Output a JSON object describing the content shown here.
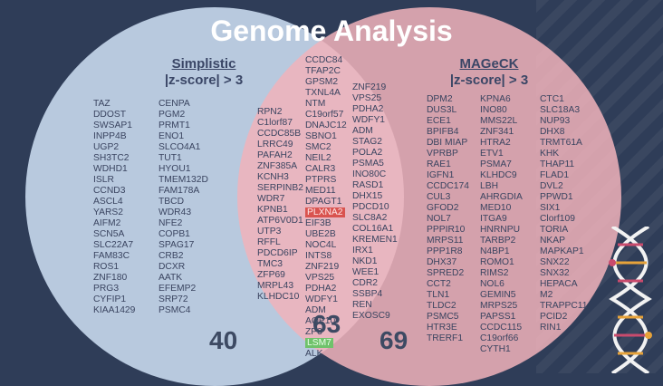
{
  "title": "Genome Analysis",
  "left_set": {
    "name": "Simplistic",
    "criterion": "|z-score| > 3",
    "count": "40",
    "col1": [
      "TAZ",
      "DDOST",
      "SWSAP1",
      "INPP4B",
      "UGP2",
      "SH3TC2",
      "WDHD1",
      "ISLR",
      "CCND3",
      "ASCL4",
      "YARS2",
      "AIFM2",
      "SCN5A",
      "SLC22A7",
      "FAM83C",
      "ROS1",
      "ZNF180",
      "PRG3",
      "CYFIP1",
      "KIAA1429"
    ],
    "col2": [
      "CENPA",
      "PGM2",
      "PRMT1",
      "ENO1",
      "SLCO4A1",
      "TUT1",
      "HYOU1",
      "TMEM132D",
      "FAM178A",
      "TBCD",
      "WDR43",
      "NFE2",
      "COPB1",
      "SPAG17",
      "CRB2",
      "DCXR",
      "AATK",
      "EFEMP2",
      "SRP72",
      "PSMC4"
    ]
  },
  "right_set": {
    "name": "MAGeCK",
    "criterion": "|z-score| > 3",
    "count": "69",
    "col1": [
      "DPM2",
      "DUS3L",
      "ECE1",
      "BPIFB4",
      "DBI MIAP",
      "VPRBP",
      "RAE1",
      "IGFN1",
      "CCDC174",
      "CUL3",
      "GFOD2",
      "NOL7",
      "PPPIR10",
      "MRPS11",
      "PPP1R8",
      "DHX37",
      "SPRED2",
      "CCT2",
      "TLN1",
      "TLDC2",
      "PSMC5",
      "HTR3E",
      "TRERF1"
    ],
    "col2": [
      "KPNA6",
      "INO80",
      "MMS22L",
      "ZNF341",
      "HTRA2",
      "ETV1",
      "PSMA7",
      "KLHDC9",
      "LBH",
      "AHRGDIA",
      "MED10",
      "ITGA9",
      "HNRNPU",
      "TARBP2",
      "N4BP1",
      "ROMO1",
      "RIMS2",
      "NOL6",
      "GEMIN5",
      "MRPS25",
      "PAPSS1",
      "CCDC115",
      "C19orf66",
      "CYTH1"
    ],
    "col3": [
      "CTC1",
      "SLC18A3",
      "NUP93",
      "DHX8",
      "TRMT61A",
      "KHK",
      "THAP11",
      "FLAD1",
      "DVL2",
      "PPWD1",
      "SIX1",
      "Clorf109",
      "TORIA",
      "NKAP",
      "MAPKAP1",
      "SNX22",
      "SNX32",
      "HEPACA",
      "M2",
      "TRAPPC11",
      "PCID2",
      "RIN1"
    ]
  },
  "overlap": {
    "count": "63",
    "col1": [
      "RPN2",
      "C1lorf87",
      "CCDC85B",
      "LRRC49",
      "PAFAH2",
      "ZNF385A",
      "KCNH3",
      "SERPINB2",
      "WDR7",
      "KPNB1",
      "ATP6V0D1",
      "UTP3",
      "RFFL",
      "PDCD6IP",
      "TMC3",
      "ZFP69",
      "MRPL43",
      "KLHDC10"
    ],
    "col2": [
      "CCDC84",
      "TFAP2C",
      "GPSM2",
      "TXNL4A",
      "NTM",
      "C19orf57",
      "DNAJC12",
      "SBNO1",
      "SMC2",
      "NEIL2",
      "CALR3",
      "PTPRS",
      "MED11",
      "DPAGT1",
      "PLXNA2",
      "EIF3B",
      "UBE2B",
      "NOC4L",
      "INTS8",
      "ZNF219",
      "VPS25",
      "PDHA2",
      "WDFY1",
      "ADM",
      "AQP10",
      "ZP3",
      "LSM7",
      "ALK"
    ],
    "col3": [
      "ZNF219",
      "VPS25",
      "PDHA2",
      "WDFY1",
      "ADM",
      "STAG2",
      "POLA2",
      "PSMA5",
      "INO80C",
      "RASD1",
      "DHX15",
      "PDCD10",
      "SLC8A2",
      "COL16A1",
      "KREMEN1",
      "IRX1",
      "NKD1",
      "WEE1",
      "CDR2",
      "SSBP4",
      "REN",
      "EXOSC9"
    ],
    "highlight_red": "PLXNA2",
    "highlight_green": "LSM7"
  },
  "colors": {
    "background": "#2f3d58",
    "left_circle": "#b8c9de",
    "right_circle": "#f0b2ba",
    "text": "#3a4460"
  }
}
